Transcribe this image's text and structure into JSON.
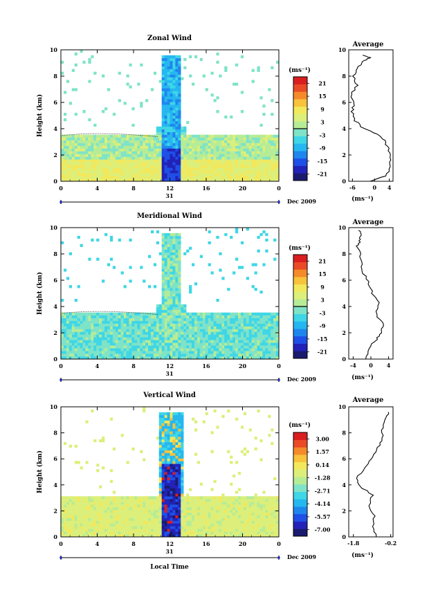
{
  "colors": {
    "colormap": [
      "#1a1a6e",
      "#2222b8",
      "#1e4fe6",
      "#1f86ee",
      "#25b7f0",
      "#3fd6e6",
      "#7fe3c8",
      "#b6ec96",
      "#dcef7a",
      "#f2e85c",
      "#f8c23a",
      "#f58a2a",
      "#ea4a26",
      "#d91e20"
    ],
    "zero_line": "#000000"
  },
  "chart_data": [
    {
      "id": "zonal",
      "type": "heatmap",
      "title": "Zonal Wind",
      "ylabel": "Height (km)",
      "xlabel": "",
      "x_ticks": [
        "0",
        "4",
        "8",
        "12",
        "16",
        "20",
        "0"
      ],
      "y_ticks": [
        "0",
        "2",
        "4",
        "6",
        "8",
        "10"
      ],
      "xlim": [
        0,
        24
      ],
      "ylim": [
        0,
        10
      ],
      "date_day": "31",
      "date_label": "Dec 2009",
      "colorbar": {
        "unit": "(ms⁻¹)",
        "ticks": [
          "21",
          "15",
          "9",
          "3",
          "-3",
          "-9",
          "-15",
          "-21"
        ],
        "range": [
          -24,
          24
        ]
      },
      "profile": {
        "title": "Average",
        "xlabel": "(ms⁻¹)",
        "x_ticks": [
          "-6",
          "0",
          "4"
        ],
        "xlim": [
          -7,
          5
        ],
        "y_ticks": [
          "0",
          "2",
          "4",
          "6",
          "8",
          "10"
        ],
        "points": [
          [
            -1,
            0
          ],
          [
            3,
            0.4
          ],
          [
            4.3,
            1.1
          ],
          [
            4.2,
            1.8
          ],
          [
            3.6,
            2.5
          ],
          [
            2.6,
            3.1
          ],
          [
            0.6,
            3.6
          ],
          [
            -3,
            4
          ],
          [
            -5.2,
            4.6
          ],
          [
            -6.2,
            5.3
          ],
          [
            -5.4,
            5.9
          ],
          [
            -6.3,
            6.6
          ],
          [
            -4.8,
            7.3
          ],
          [
            -5.6,
            8
          ],
          [
            -4.5,
            8.6
          ],
          [
            -3.3,
            9.1
          ],
          [
            -1.2,
            9.4
          ],
          [
            -3.2,
            9.6
          ]
        ]
      }
    },
    {
      "id": "meridional",
      "type": "heatmap",
      "title": "Meridional Wind",
      "ylabel": "Height (km)",
      "xlabel": "",
      "x_ticks": [
        "0",
        "4",
        "8",
        "12",
        "16",
        "20",
        "0"
      ],
      "y_ticks": [
        "0",
        "2",
        "4",
        "6",
        "8",
        "10"
      ],
      "xlim": [
        0,
        24
      ],
      "ylim": [
        0,
        10
      ],
      "date_day": "31",
      "date_label": "Dec 2009",
      "colorbar": {
        "unit": "(ms⁻¹)",
        "ticks": [
          "21",
          "15",
          "9",
          "3",
          "-3",
          "-9",
          "-15",
          "-21"
        ],
        "range": [
          -24,
          24
        ]
      },
      "profile": {
        "title": "Average",
        "xlabel": "(ms⁻¹)",
        "x_ticks": [
          "-4",
          "0",
          "4"
        ],
        "xlim": [
          -5,
          5
        ],
        "y_ticks": [
          "0",
          "2",
          "4",
          "6",
          "8",
          "10"
        ],
        "points": [
          [
            -1,
            0
          ],
          [
            -0.5,
            0.8
          ],
          [
            1.2,
            1.5
          ],
          [
            2.3,
            2
          ],
          [
            2.9,
            2.6
          ],
          [
            1.2,
            3.4
          ],
          [
            1.6,
            4.3
          ],
          [
            0.3,
            5
          ],
          [
            -0.4,
            5.7
          ],
          [
            -1.6,
            6.5
          ],
          [
            -2.1,
            7.2
          ],
          [
            -2.3,
            8
          ],
          [
            -3.1,
            8.6
          ],
          [
            -2.5,
            9
          ],
          [
            -2.2,
            9.4
          ],
          [
            -2.8,
            9.8
          ]
        ]
      }
    },
    {
      "id": "vertical",
      "type": "heatmap",
      "title": "Vertical Wind",
      "ylabel": "Height (km)",
      "xlabel": "Local Time",
      "x_ticks": [
        "0",
        "4",
        "8",
        "12",
        "16",
        "20",
        "0"
      ],
      "y_ticks": [
        "0",
        "2",
        "4",
        "6",
        "8",
        "10"
      ],
      "xlim": [
        0,
        24
      ],
      "ylim": [
        0,
        10
      ],
      "date_day": "31",
      "date_label": "Dec 2009",
      "colorbar": {
        "unit": "(ms⁻¹)",
        "ticks": [
          "3.00",
          "1.57",
          "0.14",
          "-1.28",
          "-2.71",
          "-4.14",
          "-5.57",
          "-7.00"
        ],
        "range": [
          -7.7,
          3.7
        ]
      },
      "profile": {
        "title": "Average",
        "xlabel": "(ms⁻¹)",
        "x_ticks": [
          "-1.8",
          "-0.2"
        ],
        "xlim": [
          -2.0,
          -0.1
        ],
        "y_ticks": [
          "0",
          "2",
          "4",
          "6",
          "8",
          "10"
        ],
        "points": [
          [
            -0.8,
            0
          ],
          [
            -1.0,
            0.8
          ],
          [
            -0.9,
            1.6
          ],
          [
            -1.1,
            2.4
          ],
          [
            -1.0,
            3.2
          ],
          [
            -1.5,
            3.9
          ],
          [
            -1.7,
            4.5
          ],
          [
            -1.3,
            5.3
          ],
          [
            -1.0,
            6.0
          ],
          [
            -0.8,
            6.7
          ],
          [
            -0.6,
            7.4
          ],
          [
            -0.55,
            8.2
          ],
          [
            -0.4,
            9.0
          ],
          [
            -0.3,
            9.6
          ]
        ]
      }
    }
  ]
}
